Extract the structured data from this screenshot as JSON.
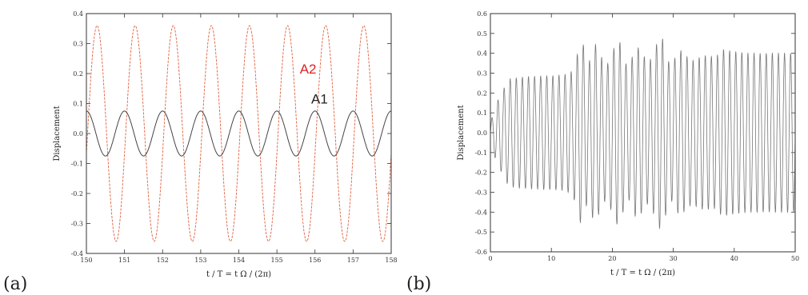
{
  "panel_labels": [
    "(a)",
    "(b)"
  ],
  "chart_data": [
    {
      "type": "line",
      "xlabel": "t / T  =  t Ω / (2π)",
      "ylabel": "Displacement",
      "xlim": [
        150,
        158
      ],
      "ylim": [
        -0.4,
        0.4
      ],
      "xticks": [
        "150",
        "151",
        "152",
        "153",
        "154",
        "155",
        "156",
        "157",
        "158"
      ],
      "yticks": [
        "0.4",
        "0.3",
        "0.2",
        "0.1",
        "0.0",
        "-0.1",
        "-0.2",
        "-0.3",
        "-0.4"
      ],
      "grid": false,
      "series": [
        {
          "name": "A2",
          "color": "#e06040",
          "amplitude": 0.36,
          "period": 1.0,
          "phase_peak_x": 150.28
        },
        {
          "name": "A1",
          "color": "#444444",
          "amplitude": 0.075,
          "period": 1.0,
          "phase_peak_x": 150.0
        }
      ],
      "annotations": [
        {
          "text": "A2",
          "color": "#e02020",
          "x": 155.6,
          "y": 0.2
        },
        {
          "text": "A1",
          "color": "#222222",
          "x": 155.9,
          "y": 0.1
        }
      ]
    },
    {
      "type": "line",
      "xlabel": "t / T  =  t Ω / (2π)",
      "ylabel": "Displacement",
      "xlim": [
        0,
        50
      ],
      "ylim": [
        -0.6,
        0.6
      ],
      "xticks": [
        "0",
        "10",
        "20",
        "30",
        "40",
        "50"
      ],
      "yticks": [
        "0.6",
        "0.5",
        "0.4",
        "0.3",
        "0.2",
        "0.1",
        "0.0",
        "-0.1",
        "-0.2",
        "-0.3",
        "-0.4",
        "-0.5",
        "-0.6"
      ],
      "grid": false,
      "series": [
        {
          "color": "#777777",
          "cycles_per_unit": 1.0,
          "envelope_x": [
            0,
            1,
            3,
            5,
            12,
            13.5,
            15,
            16,
            17,
            19,
            21,
            22.5,
            24,
            26,
            28,
            29.5,
            31,
            33,
            35,
            37,
            38,
            42,
            50
          ],
          "envelope_y": [
            0.05,
            0.15,
            0.27,
            0.28,
            0.29,
            0.31,
            0.48,
            0.33,
            0.46,
            0.33,
            0.48,
            0.32,
            0.44,
            0.35,
            0.5,
            0.33,
            0.42,
            0.36,
            0.39,
            0.38,
            0.42,
            0.4,
            0.4
          ]
        }
      ]
    }
  ]
}
